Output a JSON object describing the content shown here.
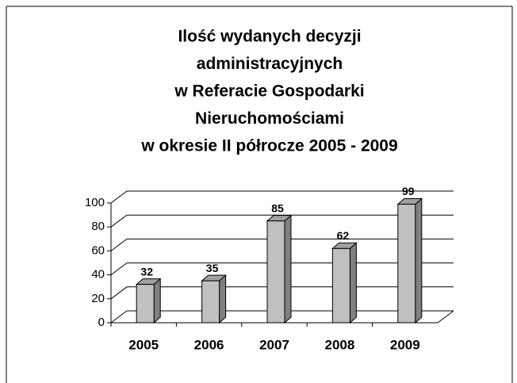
{
  "chart_data": {
    "type": "bar3d",
    "title": [
      "Ilość wydanych decyzji",
      "administracyjnych",
      "w Referacie Gospodarki",
      "Nieruchomościami",
      "w okresie II półrocze 2005 - 2009"
    ],
    "categories": [
      "2005",
      "2006",
      "2007",
      "2008",
      "2009"
    ],
    "values": [
      32,
      35,
      85,
      62,
      99
    ],
    "color": "#c0c0c0",
    "ylim": [
      0,
      100
    ],
    "yticks": [
      0,
      20,
      40,
      60,
      80,
      100
    ],
    "grid": true
  }
}
